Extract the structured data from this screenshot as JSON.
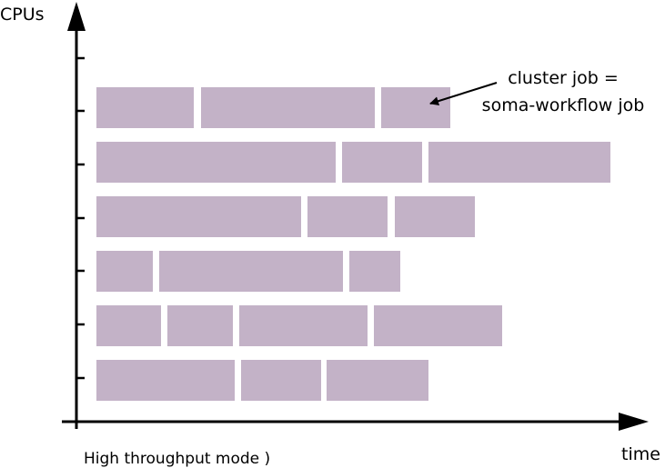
{
  "diagram": {
    "y_axis_label": "CPUs",
    "x_axis_label": "time",
    "caption": "High throughput mode )",
    "annotation": {
      "line1": "cluster job =",
      "line2": "soma-workflow job"
    },
    "job_color": "#c3b2c7",
    "axis_color": "#000000",
    "rows": [
      {
        "cpu": 6,
        "jobs": 3
      },
      {
        "cpu": 5,
        "jobs": 3
      },
      {
        "cpu": 4,
        "jobs": 3
      },
      {
        "cpu": 3,
        "jobs": 3
      },
      {
        "cpu": 2,
        "jobs": 4
      },
      {
        "cpu": 1,
        "jobs": 3
      }
    ]
  }
}
